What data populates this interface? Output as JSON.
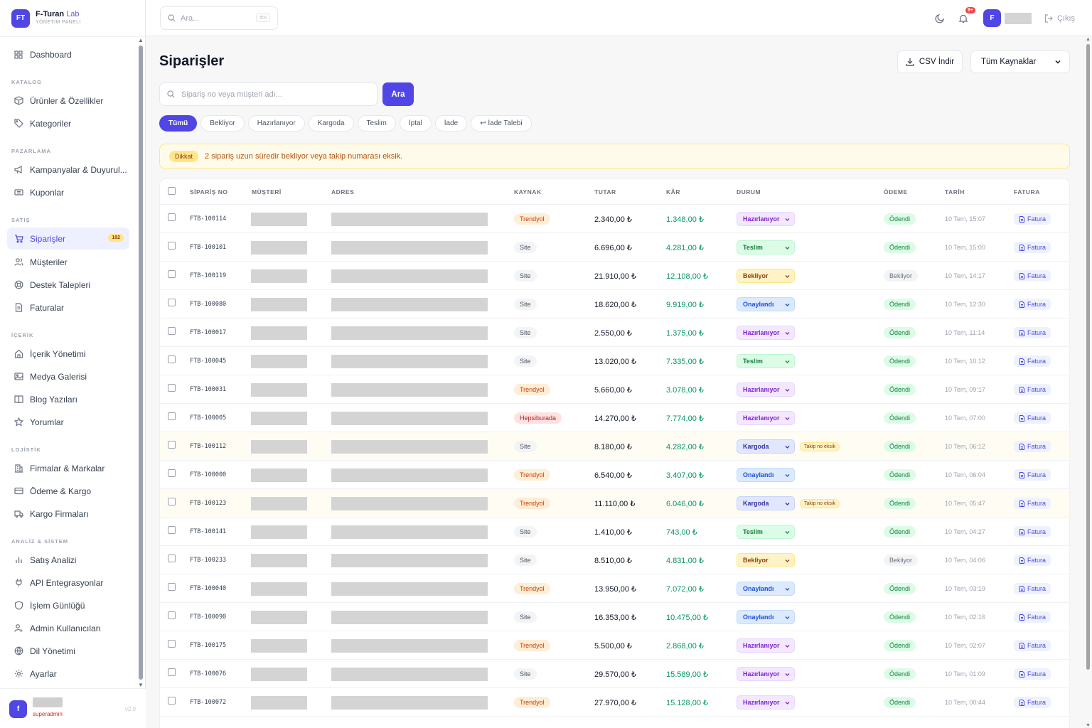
{
  "brand": {
    "logo": "FT",
    "name": "F-Turan",
    "name_accent": "Lab",
    "subtitle": "YÖNETİM PANELİ"
  },
  "nav": {
    "dashboard": "Dashboard",
    "sections": {
      "katalog": "KATALOG",
      "pazarlama": "PAZARLAMA",
      "satis": "SATIŞ",
      "icerik": "İÇERİK",
      "lojistik": "LOJİSTİK",
      "analiz": "ANALİZ & SİSTEM"
    },
    "items": {
      "urunler": "Ürünler & Özellikler",
      "kategoriler": "Kategoriler",
      "kampanyalar": "Kampanyalar & Duyurul...",
      "kuponlar": "Kuponlar",
      "siparisler": "Siparişler",
      "siparisler_badge": "182",
      "musteriler": "Müşteriler",
      "destek": "Destek Talepleri",
      "faturalar": "Faturalar",
      "icerik_yonetimi": "İçerik Yönetimi",
      "medya": "Medya Galerisi",
      "blog": "Blog Yazıları",
      "yorumlar": "Yorumlar",
      "firmalar": "Firmalar & Markalar",
      "odeme": "Ödeme & Kargo",
      "kargo_firmalari": "Kargo Firmaları",
      "satis_analizi": "Satış Analizi",
      "api": "API Entegrasyonlar",
      "islem": "İşlem Günlüğü",
      "admin": "Admin Kullanıcıları",
      "dil": "Dil Yönetimi",
      "ayarlar": "Ayarlar"
    }
  },
  "user": {
    "avatar": "f",
    "role": "superadmin",
    "version": "v2.0"
  },
  "topbar": {
    "search_placeholder": "Ara...",
    "shortcut": "⌘K",
    "notif_count": "9+",
    "avatar": "F",
    "logout": "Çıkış"
  },
  "page": {
    "title": "Siparişler",
    "csv_button": "CSV İndir",
    "source_select": "Tüm Kaynaklar",
    "search_placeholder": "Sipariş no veya müşteri adı...",
    "search_button": "Ara",
    "filters": [
      "Tümü",
      "Bekliyor",
      "Hazırlanıyor",
      "Kargoda",
      "Teslim",
      "İptal",
      "İade",
      "↩ İade Talebi"
    ],
    "alert_tag": "Dikkat",
    "alert_text": "2 sipariş uzun süredir bekliyor veya takip numarası eksik."
  },
  "table": {
    "headers": {
      "order_no": "SİPARİŞ NO",
      "customer": "MÜŞTERİ",
      "address": "ADRES",
      "source": "KAYNAK",
      "amount": "TUTAR",
      "profit": "KÂR",
      "status": "DURUM",
      "payment": "ÖDEME",
      "date": "TARİH",
      "invoice": "FATURA"
    },
    "invoice_label": "Fatura",
    "missing_tracking": "Takip no eksik",
    "rows": [
      {
        "no": "FTB-100114",
        "source": "Trendyol",
        "amount": "2.340,00 ₺",
        "profit": "1.348,00 ₺",
        "status": "Hazırlanıyor",
        "payment": "Ödendi",
        "date": "10 Tem, 15:07",
        "warn": false
      },
      {
        "no": "FTB-100101",
        "source": "Site",
        "amount": "6.696,00 ₺",
        "profit": "4.281,00 ₺",
        "status": "Teslim",
        "payment": "Ödendi",
        "date": "10 Tem, 15:00",
        "warn": false
      },
      {
        "no": "FTB-100119",
        "source": "Site",
        "amount": "21.910,00 ₺",
        "profit": "12.108,00 ₺",
        "status": "Bekliyor",
        "payment": "Bekliyor",
        "date": "10 Tem, 14:17",
        "warn": false
      },
      {
        "no": "FTB-100080",
        "source": "Site",
        "amount": "18.620,00 ₺",
        "profit": "9.919,00 ₺",
        "status": "Onaylandı",
        "payment": "Ödendi",
        "date": "10 Tem, 12:30",
        "warn": false
      },
      {
        "no": "FTB-100017",
        "source": "Site",
        "amount": "2.550,00 ₺",
        "profit": "1.375,00 ₺",
        "status": "Hazırlanıyor",
        "payment": "Ödendi",
        "date": "10 Tem, 11:14",
        "warn": false
      },
      {
        "no": "FTB-100045",
        "source": "Site",
        "amount": "13.020,00 ₺",
        "profit": "7.335,00 ₺",
        "status": "Teslim",
        "payment": "Ödendi",
        "date": "10 Tem, 10:12",
        "warn": false
      },
      {
        "no": "FTB-100031",
        "source": "Trendyol",
        "amount": "5.660,00 ₺",
        "profit": "3.078,00 ₺",
        "status": "Hazırlanıyor",
        "payment": "Ödendi",
        "date": "10 Tem, 09:17",
        "warn": false
      },
      {
        "no": "FTB-100005",
        "source": "Hepsiburada",
        "amount": "14.270,00 ₺",
        "profit": "7.774,00 ₺",
        "status": "Hazırlanıyor",
        "payment": "Ödendi",
        "date": "10 Tem, 07:00",
        "warn": false
      },
      {
        "no": "FTB-100112",
        "source": "Site",
        "amount": "8.180,00 ₺",
        "profit": "4.282,00 ₺",
        "status": "Kargoda",
        "payment": "Ödendi",
        "date": "10 Tem, 06:12",
        "warn": true
      },
      {
        "no": "FTB-100000",
        "source": "Trendyol",
        "amount": "6.540,00 ₺",
        "profit": "3.407,00 ₺",
        "status": "Onaylandı",
        "payment": "Ödendi",
        "date": "10 Tem, 06:04",
        "warn": false
      },
      {
        "no": "FTB-100123",
        "source": "Trendyol",
        "amount": "11.110,00 ₺",
        "profit": "6.046,00 ₺",
        "status": "Kargoda",
        "payment": "Ödendi",
        "date": "10 Tem, 05:47",
        "warn": true
      },
      {
        "no": "FTB-100141",
        "source": "Site",
        "amount": "1.410,00 ₺",
        "profit": "743,00 ₺",
        "status": "Teslim",
        "payment": "Ödendi",
        "date": "10 Tem, 04:27",
        "warn": false
      },
      {
        "no": "FTB-100233",
        "source": "Site",
        "amount": "8.510,00 ₺",
        "profit": "4.831,00 ₺",
        "status": "Bekliyor",
        "payment": "Bekliyor",
        "date": "10 Tem, 04:06",
        "warn": false
      },
      {
        "no": "FTB-100040",
        "source": "Trendyol",
        "amount": "13.950,00 ₺",
        "profit": "7.072,00 ₺",
        "status": "Onaylandı",
        "payment": "Ödendi",
        "date": "10 Tem, 03:19",
        "warn": false
      },
      {
        "no": "FTB-100090",
        "source": "Site",
        "amount": "16.353,00 ₺",
        "profit": "10.475,00 ₺",
        "status": "Onaylandı",
        "payment": "Ödendi",
        "date": "10 Tem, 02:16",
        "warn": false
      },
      {
        "no": "FTB-100175",
        "source": "Trendyol",
        "amount": "5.500,00 ₺",
        "profit": "2.868,00 ₺",
        "status": "Hazırlanıyor",
        "payment": "Ödendi",
        "date": "10 Tem, 02:07",
        "warn": false
      },
      {
        "no": "FTB-100076",
        "source": "Site",
        "amount": "29.570,00 ₺",
        "profit": "15.589,00 ₺",
        "status": "Hazırlanıyor",
        "payment": "Ödendi",
        "date": "10 Tem, 01:09",
        "warn": false
      },
      {
        "no": "FTB-100072",
        "source": "Trendyol",
        "amount": "27.970,00 ₺",
        "profit": "15.128,00 ₺",
        "status": "Hazırlanıyor",
        "payment": "Ödendi",
        "date": "10 Tem, 00:44",
        "warn": false
      }
    ]
  },
  "colors": {
    "accent": "#4f46e5",
    "profit": "#059669",
    "warn_bg": "#fffbeb"
  }
}
